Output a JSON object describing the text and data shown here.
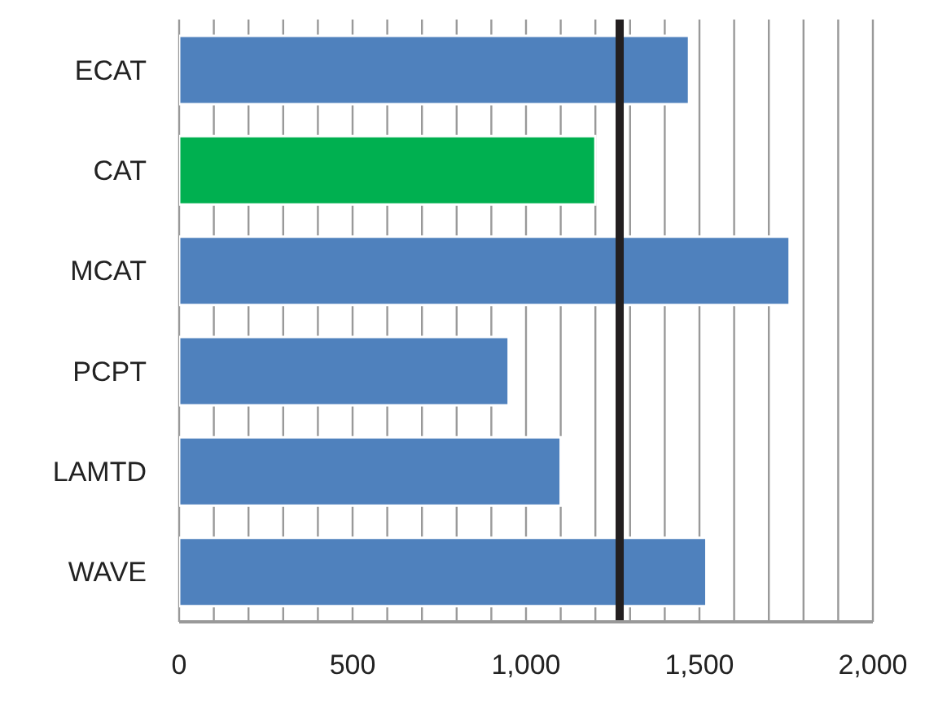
{
  "chart_data": {
    "type": "bar",
    "orientation": "horizontal",
    "categories": [
      "ECAT",
      "CAT",
      "MCAT",
      "PCPT",
      "LAMTD",
      "WAVE"
    ],
    "values": [
      1470,
      1200,
      1760,
      950,
      1100,
      1520
    ],
    "colors": [
      "#4f81bd",
      "#00b050",
      "#4f81bd",
      "#4f81bd",
      "#4f81bd",
      "#4f81bd"
    ],
    "xlim": [
      0,
      2000
    ],
    "xticks": [
      0,
      {
        "value": 100,
        "label": null
      },
      {
        "value": 200,
        "label": null
      },
      {
        "value": 300,
        "label": null
      },
      {
        "value": 400,
        "label": null
      },
      500,
      {
        "value": 600,
        "label": null
      },
      {
        "value": 700,
        "label": null
      },
      {
        "value": 800,
        "label": null
      },
      {
        "value": 900,
        "label": null
      },
      {
        "value": 1000,
        "label": "1,000"
      },
      {
        "value": 1100,
        "label": null
      },
      {
        "value": 1200,
        "label": null
      },
      {
        "value": 1300,
        "label": null
      },
      {
        "value": 1400,
        "label": null
      },
      {
        "value": 1500,
        "label": "1,500"
      },
      {
        "value": 1600,
        "label": null
      },
      {
        "value": 1700,
        "label": null
      },
      {
        "value": 1800,
        "label": null
      },
      {
        "value": 1900,
        "label": null
      },
      {
        "value": 2000,
        "label": "2,000"
      }
    ],
    "grid": "x",
    "ref_lines": [
      {
        "axis": "x",
        "value": 1270,
        "color": "#231f20"
      }
    ]
  }
}
